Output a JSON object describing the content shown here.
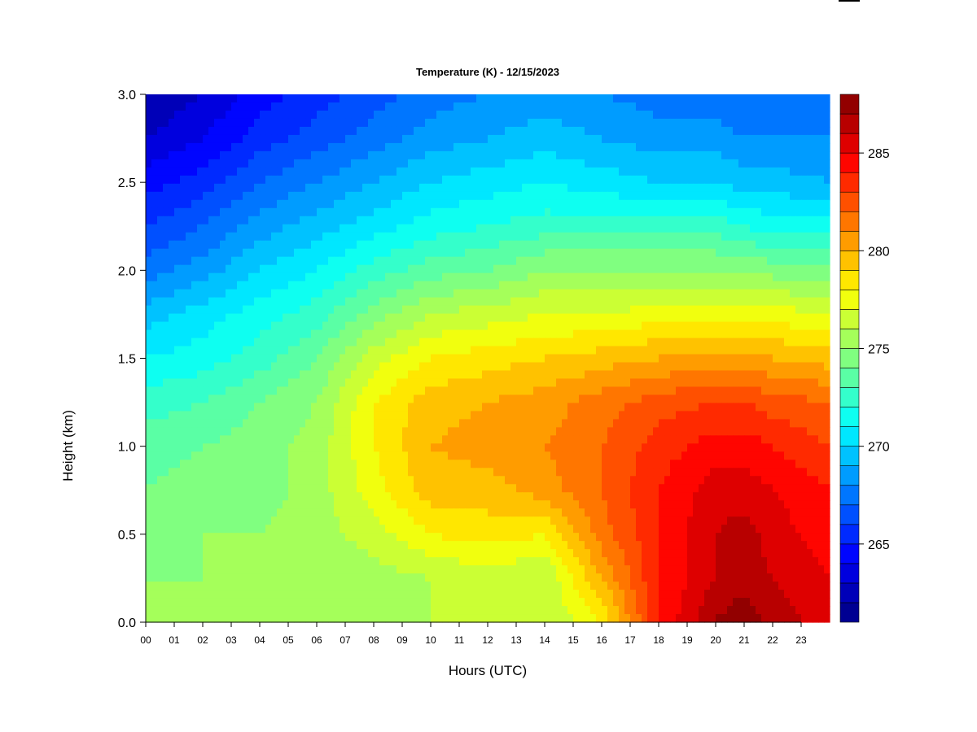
{
  "chart_data": {
    "type": "heatmap",
    "title": "Temperature (K) - 12/15/2023",
    "xlabel": "Hours (UTC)",
    "ylabel": "Height (km)",
    "x_ticks": [
      "00",
      "01",
      "02",
      "03",
      "04",
      "05",
      "06",
      "07",
      "08",
      "09",
      "10",
      "11",
      "12",
      "13",
      "14",
      "15",
      "16",
      "17",
      "18",
      "19",
      "20",
      "21",
      "22",
      "23"
    ],
    "xlim": [
      0,
      24
    ],
    "y_ticks": [
      0.0,
      0.5,
      1.0,
      1.5,
      2.0,
      2.5,
      3.0
    ],
    "ylim": [
      0.0,
      3.0
    ],
    "colorbar": {
      "ticks": [
        265,
        270,
        275,
        280,
        285
      ],
      "range": [
        261,
        288
      ],
      "levels": 27
    },
    "heights_km": [
      0.0,
      0.25,
      0.5,
      0.75,
      1.0,
      1.25,
      1.5,
      1.75,
      2.0,
      2.25,
      2.5,
      2.75,
      3.0
    ],
    "hours": [
      0,
      2,
      4,
      6,
      8,
      10,
      12,
      14,
      16,
      18,
      20,
      21,
      22,
      24
    ],
    "temperature_K": [
      [
        275.5,
        275.5,
        275.5,
        275.5,
        275.5,
        276.0,
        276.0,
        276.0,
        278.0,
        284.0,
        287.0,
        288.0,
        286.5,
        285.5
      ],
      [
        275.0,
        275.0,
        275.0,
        275.0,
        275.5,
        276.0,
        276.5,
        276.0,
        280.0,
        284.0,
        286.0,
        286.5,
        286.0,
        285.0
      ],
      [
        274.5,
        275.0,
        275.0,
        275.5,
        276.5,
        278.0,
        278.5,
        278.0,
        281.5,
        284.0,
        286.0,
        286.5,
        285.5,
        284.5
      ],
      [
        274.0,
        274.5,
        274.5,
        275.5,
        277.5,
        279.5,
        279.5,
        280.5,
        282.0,
        284.0,
        285.5,
        285.5,
        285.0,
        284.0
      ],
      [
        273.5,
        274.0,
        274.5,
        275.5,
        278.0,
        280.0,
        280.5,
        281.0,
        282.0,
        283.5,
        284.5,
        284.5,
        284.0,
        283.0
      ],
      [
        272.5,
        273.0,
        274.0,
        275.0,
        278.0,
        279.5,
        280.0,
        280.5,
        281.5,
        282.5,
        283.0,
        283.0,
        282.5,
        282.0
      ],
      [
        271.0,
        271.5,
        272.5,
        274.0,
        276.5,
        278.0,
        278.5,
        279.0,
        279.5,
        280.0,
        280.5,
        280.5,
        280.0,
        279.5
      ],
      [
        269.5,
        270.5,
        271.5,
        272.5,
        274.5,
        276.0,
        276.5,
        277.0,
        277.0,
        277.5,
        277.5,
        277.5,
        277.5,
        277.0
      ],
      [
        267.5,
        268.5,
        270.0,
        271.0,
        272.5,
        273.5,
        274.0,
        275.0,
        275.0,
        275.0,
        275.0,
        275.0,
        274.5,
        274.5
      ],
      [
        266.0,
        267.0,
        268.5,
        269.5,
        270.5,
        271.5,
        272.0,
        272.5,
        272.5,
        272.5,
        272.5,
        272.0,
        271.5,
        271.5
      ],
      [
        264.5,
        265.5,
        267.0,
        268.0,
        269.0,
        270.0,
        270.5,
        271.0,
        270.5,
        270.0,
        270.0,
        269.5,
        269.5,
        269.0
      ],
      [
        263.0,
        264.0,
        265.5,
        266.5,
        267.5,
        268.5,
        269.0,
        269.5,
        269.0,
        268.5,
        268.5,
        268.0,
        268.0,
        268.0
      ],
      [
        262.0,
        263.0,
        264.5,
        265.5,
        266.5,
        267.5,
        268.0,
        268.5,
        268.0,
        267.5,
        267.5,
        267.0,
        267.0,
        267.0
      ]
    ]
  }
}
